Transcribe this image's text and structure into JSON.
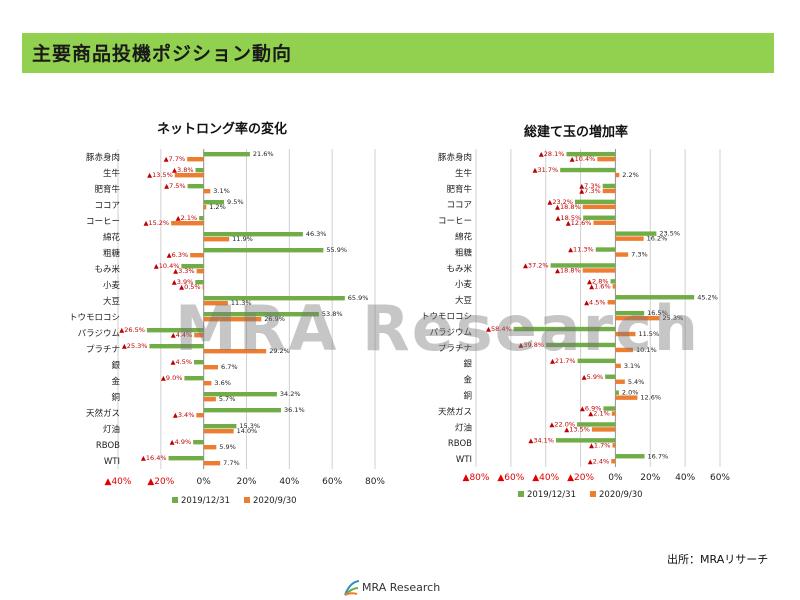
{
  "header": {
    "title": "主要商品投機ポジション動向"
  },
  "source": "出所：MRAリサーチ",
  "watermark": "MRA Research",
  "logo": {
    "text": "MRA Research"
  },
  "colors": {
    "header_bg": "#92d050",
    "series_2019": "#70ad47",
    "series_2020": "#ed7d31",
    "negative_marker": "#e00000"
  },
  "chart_data": [
    {
      "type": "bar",
      "orientation": "horizontal",
      "title": "ネットロング率の変化",
      "categories": [
        "豚赤身肉",
        "生牛",
        "肥育牛",
        "ココア",
        "コーヒー",
        "綿花",
        "粗糖",
        "もみ米",
        "小麦",
        "大豆",
        "トウモロコシ",
        "パラジウム",
        "プラチナ",
        "銀",
        "金",
        "銅",
        "天然ガス",
        "灯油",
        "RBOB",
        "WTI"
      ],
      "series": [
        {
          "name": "2019/12/31",
          "values": [
            21.6,
            -3.8,
            -7.5,
            9.5,
            -2.1,
            46.3,
            55.9,
            -10.4,
            -3.9,
            65.9,
            53.8,
            -26.5,
            -25.3,
            -4.5,
            -9.0,
            34.2,
            36.1,
            15.3,
            -4.9,
            -16.4
          ]
        },
        {
          "name": "2020/9/30",
          "values": [
            -7.7,
            -13.5,
            3.1,
            1.2,
            -15.2,
            11.9,
            -6.3,
            -3.3,
            -0.5,
            11.3,
            26.9,
            -4.4,
            29.2,
            6.7,
            3.6,
            5.7,
            -3.4,
            14.0,
            5.9,
            7.7
          ]
        }
      ],
      "labels": [
        [
          "21.6%",
          "▲7.7%"
        ],
        [
          "▲3.8%",
          "▲13.5%"
        ],
        [
          "▲7.5%",
          "3.1%"
        ],
        [
          "9.5%",
          "1.2%"
        ],
        [
          "▲2.1%",
          "▲15.2%"
        ],
        [
          "46.3%",
          "11.9%"
        ],
        [
          "55.9%",
          "▲6.3%"
        ],
        [
          "▲10.4%",
          "▲3.3%"
        ],
        [
          "▲3.9%",
          "▲0.5%"
        ],
        [
          "65.9%",
          "11.3%"
        ],
        [
          "53.8%",
          "26.9%"
        ],
        [
          "▲26.5%",
          "▲4.4%"
        ],
        [
          "▲25.3%",
          "29.2%"
        ],
        [
          "▲4.5%",
          "6.7%"
        ],
        [
          "▲9.0%",
          "3.6%"
        ],
        [
          "34.2%",
          "5.7%"
        ],
        [
          "36.1%",
          "▲3.4%"
        ],
        [
          "15.3%",
          "14.0%"
        ],
        [
          "▲4.9%",
          "5.9%"
        ],
        [
          "▲16.4%",
          "7.7%"
        ]
      ],
      "xlim": [
        -40,
        80
      ],
      "ticks": [
        -40,
        -20,
        0,
        20,
        40,
        60,
        80
      ],
      "tick_labels": [
        "▲40%",
        "▲20%",
        "0%",
        "20%",
        "40%",
        "60%",
        "80%"
      ],
      "grid": true,
      "legend": "bottom"
    },
    {
      "type": "bar",
      "orientation": "horizontal",
      "title": "総建て玉の増加率",
      "categories": [
        "豚赤身肉",
        "生牛",
        "肥育牛",
        "ココア",
        "コーヒー",
        "綿花",
        "粗糖",
        "もみ米",
        "小麦",
        "大豆",
        "トウモロコシ",
        "パラジウム",
        "プラチナ",
        "銀",
        "金",
        "銅",
        "天然ガス",
        "灯油",
        "RBOB",
        "WTI"
      ],
      "series": [
        {
          "name": "2019/12/31",
          "values": [
            -28.1,
            -31.7,
            -7.3,
            -23.2,
            -18.5,
            23.5,
            -11.3,
            -37.2,
            -2.8,
            45.2,
            16.5,
            -58.4,
            -39.8,
            -21.7,
            -5.9,
            2.0,
            -6.9,
            -22.0,
            -34.1,
            16.7
          ]
        },
        {
          "name": "2020/9/30",
          "values": [
            -10.4,
            2.2,
            -7.3,
            -18.8,
            -12.6,
            16.2,
            7.3,
            -18.8,
            -1.6,
            -4.5,
            25.3,
            11.5,
            10.1,
            3.1,
            5.4,
            12.6,
            -2.1,
            -13.5,
            -1.7,
            -2.4
          ]
        }
      ],
      "labels": [
        [
          "▲28.1%",
          "▲10.4%"
        ],
        [
          "▲31.7%",
          "2.2%"
        ],
        [
          "▲7.3%",
          "▲7.3%"
        ],
        [
          "▲23.2%",
          "▲18.8%"
        ],
        [
          "▲18.5%",
          "▲12.6%"
        ],
        [
          "23.5%",
          "16.2%"
        ],
        [
          "▲11.3%",
          "7.3%"
        ],
        [
          "▲37.2%",
          "▲18.8%"
        ],
        [
          "▲2.8%",
          "▲1.6%"
        ],
        [
          "45.2%",
          "▲4.5%"
        ],
        [
          "16.5%",
          "25.3%"
        ],
        [
          "▲58.4%",
          "11.5%"
        ],
        [
          "▲39.8%",
          "10.1%"
        ],
        [
          "▲21.7%",
          "3.1%"
        ],
        [
          "▲5.9%",
          "5.4%"
        ],
        [
          "2.0%",
          "12.6%"
        ],
        [
          "▲6.9%",
          "▲2.1%"
        ],
        [
          "▲22.0%",
          "▲13.5%"
        ],
        [
          "▲34.1%",
          "▲1.7%"
        ],
        [
          "16.7%",
          "▲2.4%"
        ]
      ],
      "xlim": [
        -80,
        60
      ],
      "ticks": [
        -80,
        -60,
        -40,
        -20,
        0,
        20,
        40,
        60
      ],
      "tick_labels": [
        "▲80%",
        "▲60%",
        "▲40%",
        "▲20%",
        "0%",
        "20%",
        "40%",
        "60%"
      ],
      "grid": true,
      "legend": "bottom"
    }
  ]
}
